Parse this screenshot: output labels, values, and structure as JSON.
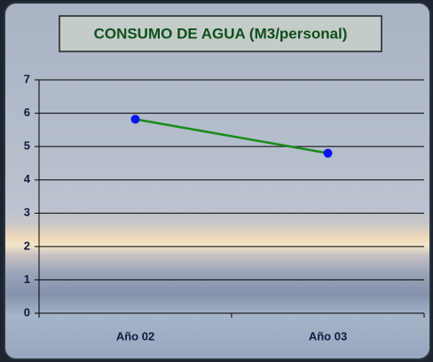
{
  "chart_data": {
    "type": "line",
    "title": "CONSUMO DE AGUA (M3/personal)",
    "categories": [
      "Año 02",
      "Año 03"
    ],
    "series": [
      {
        "color": "#1a8a1a",
        "marker_color": "#0a14f0",
        "values": [
          5.82,
          4.8
        ]
      }
    ],
    "ylim": [
      0,
      7
    ],
    "yticks": [
      0,
      1,
      2,
      3,
      4,
      5,
      6,
      7
    ],
    "grid": true
  }
}
